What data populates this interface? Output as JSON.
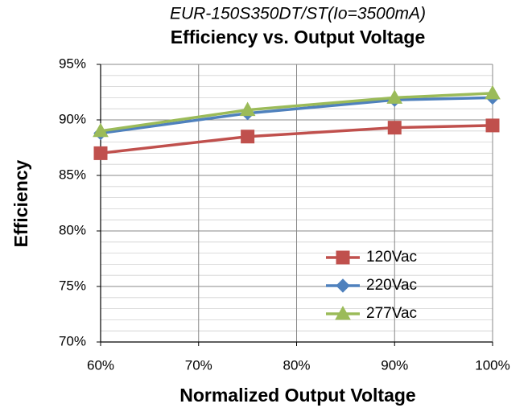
{
  "chart_data": {
    "type": "line",
    "subtitle": "EUR-150S350DT/ST(Io=3500mA)",
    "title": "Efficiency vs. Output Voltage",
    "x_label": "Normalized Output Voltage",
    "y_label": "Efficiency",
    "x": [
      60,
      75,
      90,
      100
    ],
    "series": [
      {
        "name": "120Vac",
        "color": "#c0504d",
        "marker": "square",
        "values": [
          87.0,
          88.5,
          89.3,
          89.5
        ]
      },
      {
        "name": "220Vac",
        "color": "#4f81bd",
        "marker": "diamond",
        "values": [
          88.8,
          90.6,
          91.8,
          92.0
        ]
      },
      {
        "name": "277Vac",
        "color": "#9bbb59",
        "marker": "triangle",
        "values": [
          89.0,
          90.9,
          92.0,
          92.4
        ]
      }
    ],
    "xlim": [
      60,
      100
    ],
    "xticks": [
      {
        "value": 60,
        "label": "60%"
      },
      {
        "value": 70,
        "label": "70%"
      },
      {
        "value": 80,
        "label": "80%"
      },
      {
        "value": 90,
        "label": "90%"
      },
      {
        "value": 100,
        "label": "100%"
      }
    ],
    "ylim": [
      70,
      95
    ],
    "yticks": [
      {
        "value": 70,
        "label": "70%"
      },
      {
        "value": 75,
        "label": "75%"
      },
      {
        "value": 80,
        "label": "80%"
      },
      {
        "value": 85,
        "label": "85%"
      },
      {
        "value": 90,
        "label": "90%"
      },
      {
        "value": 95,
        "label": "95%"
      }
    ],
    "y_minor_step": 1,
    "grid": true,
    "legend": "lower right"
  }
}
